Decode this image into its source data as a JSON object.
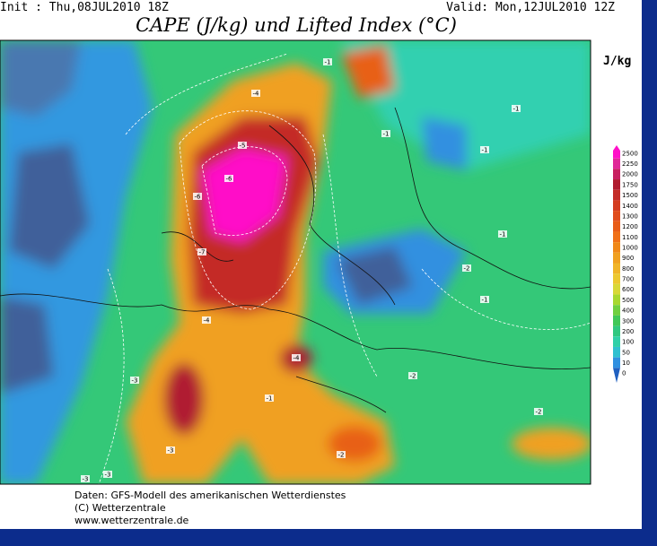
{
  "header": {
    "init": "Init : Thu,08JUL2010 18Z",
    "valid": "Valid: Mon,12JUL2010 12Z",
    "title": "CAPE (J/kg) und Lifted Index (°C)"
  },
  "colorbar": {
    "unit": "J/kg",
    "levels": [
      2500,
      2250,
      2000,
      1750,
      1500,
      1400,
      1300,
      1200,
      1100,
      1000,
      900,
      800,
      700,
      600,
      500,
      400,
      300,
      200,
      100,
      50,
      10,
      0
    ],
    "colors": [
      "#ff10c8",
      "#e02898",
      "#c82060",
      "#b01c30",
      "#c42c28",
      "#d43c20",
      "#e04c1c",
      "#e85c18",
      "#f07018",
      "#f08818",
      "#f0a020",
      "#f0b428",
      "#ecc830",
      "#d8d838",
      "#a8d830",
      "#70d040",
      "#40c858",
      "#30c880",
      "#30d0a8",
      "#30c0d0",
      "#3090e0",
      "#2060c0"
    ]
  },
  "contour_labels": [
    "-1",
    "-1",
    "-1",
    "-1",
    "-1",
    "-1",
    "-2",
    "-2",
    "-2",
    "-3",
    "-3",
    "-3",
    "-4",
    "-4",
    "-4",
    "-5",
    "-6",
    "-6",
    "-7",
    "-2",
    "-1",
    "-3"
  ],
  "footer": {
    "source": "Daten: GFS-Modell des amerikanischen Wetterdienstes",
    "copyright": "(C) Wetterzentrale",
    "url": "www.wetterzentrale.de"
  }
}
